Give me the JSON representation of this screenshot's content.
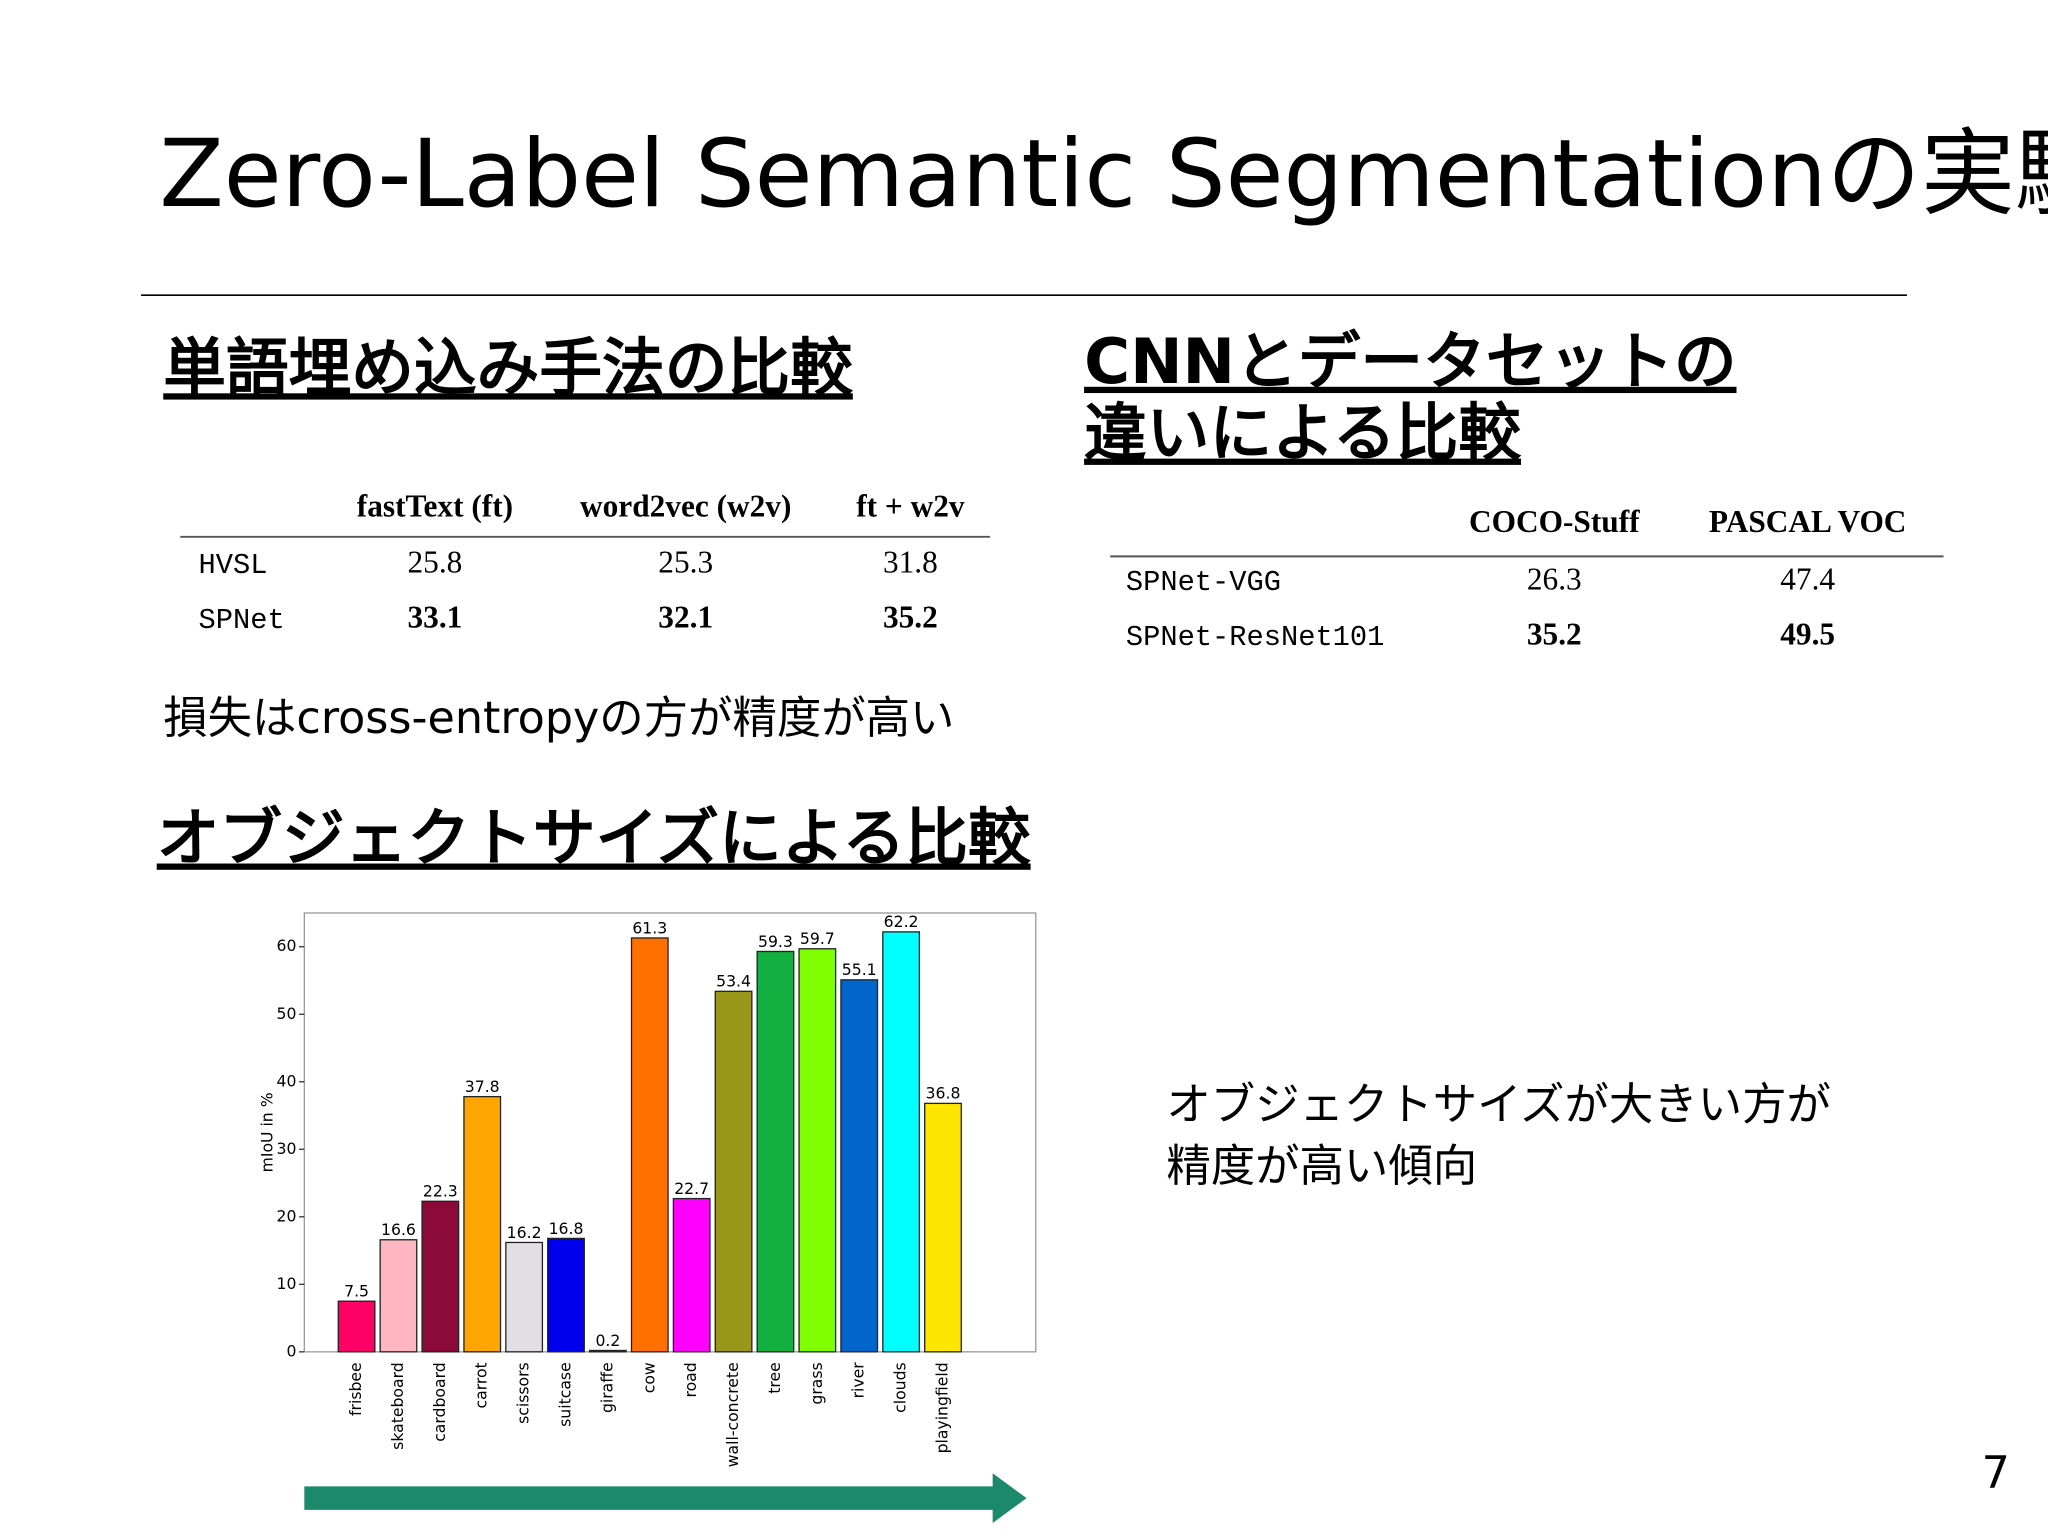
{
  "title": "Zero-Label Semantic Segmentationの実験",
  "page_number": "7",
  "section1": {
    "heading": "単語埋め込み手法の比較",
    "table": {
      "header": [
        "fastText (ft)",
        "word2vec (w2v)",
        "ft + w2v"
      ],
      "rows": [
        [
          "HVSL",
          25.8,
          25.3,
          31.8
        ],
        [
          "SPNet",
          33.1,
          32.1,
          35.2
        ]
      ]
    },
    "note": "損失はcross-entropyの方が精度が高い"
  },
  "section2": {
    "heading": [
      "CNNとデータセットの",
      "違いによる比較"
    ],
    "table": {
      "header": [
        "COCO-Stuff",
        "PASCAL VOC"
      ],
      "rows": [
        [
          "SPNet-VGG",
          26.3,
          47.4
        ],
        [
          "SPNet-ResNet101",
          35.2,
          49.5
        ]
      ]
    }
  },
  "section3": {
    "heading": "オブジェクトサイズによる比較",
    "note": [
      "オブジェクトサイズが大きい方が",
      "精度が高い傾向"
    ]
  },
  "chart_data": {
    "type": "bar",
    "ylabel": "mIoU in %",
    "categories": [
      "frisbee",
      "skateboard",
      "cardboard",
      "carrot",
      "scissors",
      "suitcase",
      "giraffe",
      "cow",
      "road",
      "wall-concrete",
      "tree",
      "grass",
      "river",
      "clouds",
      "playingfield"
    ],
    "values": [
      7.5,
      16.6,
      22.3,
      37.8,
      16.2,
      16.8,
      0.2,
      61.3,
      22.7,
      53.4,
      59.3,
      59.7,
      55.1,
      62.2,
      36.8
    ],
    "colors": [
      "#ff0066",
      "#ffb6c1",
      "#8b0a3a",
      "#ffa500",
      "#e2dfe2",
      "#0000ee",
      "#888888",
      "#ff7000",
      "#ff00ff",
      "#9a961a",
      "#12b040",
      "#80ff00",
      "#0066cc",
      "#00ffff",
      "#ffe600"
    ],
    "ylim": [
      0,
      65
    ],
    "yticks": [
      0,
      10,
      20,
      30,
      40,
      50,
      60
    ]
  }
}
